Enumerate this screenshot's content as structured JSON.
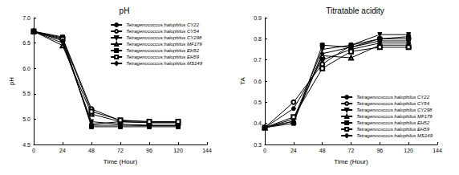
{
  "chart_data": [
    {
      "type": "line",
      "title": "pH",
      "x_label": "Time (Hour)",
      "y_label": "pH",
      "x": [
        0,
        24,
        48,
        72,
        96,
        120
      ],
      "xlim": [
        0,
        144
      ],
      "xticks": [
        0,
        24,
        48,
        72,
        96,
        120,
        144
      ],
      "ylim": [
        4.5,
        7.0
      ],
      "yticks": [
        {
          "value": 4.5,
          "label": "4.5"
        },
        {
          "value": 5,
          "label": "5.0"
        },
        {
          "value": 5.5,
          "label": "5.5"
        },
        {
          "value": 6,
          "label": "6.0"
        },
        {
          "value": 6.5,
          "label": "6.5"
        },
        {
          "value": 7,
          "label": "7.0"
        }
      ],
      "grid": false,
      "legend": "upper right",
      "series": [
        {
          "name": "Tetragenococcus halophilus CY22",
          "color": "#000000",
          "marker": "circle",
          "values": [
            6.73,
            6.55,
            4.9,
            4.95,
            4.93,
            4.93
          ]
        },
        {
          "name": "Tetragenococcus halophilus CY54",
          "color": "#000000",
          "marker": "open-circle",
          "values": [
            6.73,
            6.6,
            5.2,
            4.97,
            4.95,
            4.95
          ]
        },
        {
          "name": "Tetragenococcus halophilus CY298",
          "color": "#000000",
          "marker": "triangle-down",
          "values": [
            6.73,
            6.5,
            4.95,
            4.9,
            4.88,
            4.88
          ]
        },
        {
          "name": "Tetragenococcus halophilus MF179",
          "color": "#000000",
          "marker": "open-triangle",
          "values": [
            6.73,
            6.45,
            5.1,
            4.95,
            4.93,
            4.93
          ]
        },
        {
          "name": "Tetragenococcus halophilus EH52",
          "color": "#000000",
          "marker": "square",
          "values": [
            6.73,
            6.62,
            4.85,
            4.85,
            4.85,
            4.85
          ]
        },
        {
          "name": "Tetragenococcus halophilus EH59",
          "color": "#000000",
          "marker": "open-square",
          "values": [
            6.73,
            6.58,
            5.15,
            4.98,
            4.95,
            4.95
          ]
        },
        {
          "name": "Tetragenococcus halophilus MS149",
          "color": "#000000",
          "marker": "diamond",
          "values": [
            6.73,
            6.55,
            4.88,
            4.88,
            4.87,
            4.87
          ]
        }
      ]
    },
    {
      "type": "line",
      "title": "Titratable acidity",
      "x_label": "Time (Hour)",
      "y_label": "TA",
      "x": [
        0,
        24,
        48,
        72,
        96,
        120
      ],
      "xlim": [
        0,
        144
      ],
      "xticks": [
        0,
        24,
        48,
        72,
        96,
        120,
        144
      ],
      "ylim": [
        0.3,
        0.9
      ],
      "yticks": [
        0.3,
        0.4,
        0.5,
        0.6,
        0.7,
        0.8,
        0.9
      ],
      "grid": false,
      "legend": "lower right",
      "series": [
        {
          "name": "Tetragenococcus halophilus CY22",
          "color": "#000000",
          "marker": "circle",
          "values": [
            0.38,
            0.47,
            0.7,
            0.75,
            0.78,
            0.78
          ]
        },
        {
          "name": "Tetragenococcus halophilus CY54",
          "color": "#000000",
          "marker": "open-circle",
          "values": [
            0.38,
            0.5,
            0.68,
            0.77,
            0.8,
            0.8
          ]
        },
        {
          "name": "Tetragenococcus halophilus CY298",
          "color": "#000000",
          "marker": "triangle-down",
          "values": [
            0.38,
            0.42,
            0.75,
            0.77,
            0.82,
            0.82
          ]
        },
        {
          "name": "Tetragenococcus halophilus MF179",
          "color": "#000000",
          "marker": "open-triangle",
          "values": [
            0.38,
            0.41,
            0.72,
            0.71,
            0.77,
            0.77
          ]
        },
        {
          "name": "Tetragenococcus halophilus EH52",
          "color": "#000000",
          "marker": "square",
          "values": [
            0.38,
            0.4,
            0.77,
            0.76,
            0.8,
            0.81
          ]
        },
        {
          "name": "Tetragenococcus halophilus EH59",
          "color": "#000000",
          "marker": "open-square",
          "values": [
            0.38,
            0.43,
            0.66,
            0.74,
            0.76,
            0.76
          ]
        },
        {
          "name": "Tetragenococcus halophilus MS149",
          "color": "#000000",
          "marker": "diamond",
          "values": [
            0.38,
            0.41,
            0.73,
            0.76,
            0.79,
            0.79
          ]
        }
      ]
    }
  ]
}
